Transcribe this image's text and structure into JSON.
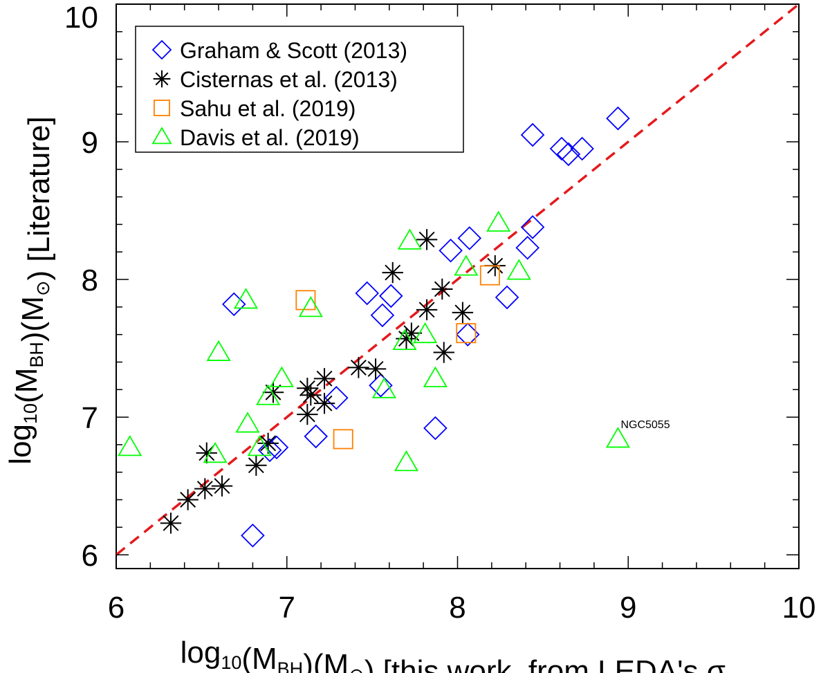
{
  "chart_data": {
    "type": "scatter",
    "xlim": [
      6,
      10
    ],
    "ylim": [
      5.9,
      10
    ],
    "xticks": [
      "6",
      "7",
      "8",
      "9",
      "10"
    ],
    "yticks": [
      "6",
      "7",
      "8",
      "9",
      "10"
    ],
    "xlabel": {
      "pre": "log",
      "sub1": "10",
      "mid1": "(M",
      "sub2": "BH",
      "mid2": ")(M",
      "sub3": "⊙",
      "post": ")  [this work, from LEDA's σ",
      "sub4": "*"
    },
    "ylabel": {
      "pre": "log",
      "sub1": "10",
      "mid1": "(M",
      "sub2": "BH",
      "mid2": ")(M",
      "sub3": "⊙",
      "post": ")  [Literature]"
    },
    "legend_position": "top-left",
    "fit_line": {
      "style": "dashed",
      "color": "#e41a1c",
      "x": [
        6,
        10
      ],
      "y": [
        6,
        10
      ]
    },
    "annotations": [
      {
        "text": "NGC5055",
        "x": 8.94,
        "y": 6.88
      }
    ],
    "series": [
      {
        "name": "Graham & Scott (2013)",
        "marker": "diamond",
        "color": "#0000ff",
        "points": [
          [
            8.44,
            9.05
          ],
          [
            8.61,
            8.95
          ],
          [
            8.65,
            8.91
          ],
          [
            8.73,
            8.95
          ],
          [
            8.94,
            9.17
          ],
          [
            8.44,
            8.38
          ],
          [
            8.41,
            8.23
          ],
          [
            8.07,
            8.3
          ],
          [
            7.96,
            8.21
          ],
          [
            8.29,
            7.87
          ],
          [
            7.47,
            7.9
          ],
          [
            7.61,
            7.88
          ],
          [
            7.56,
            7.74
          ],
          [
            8.06,
            7.6
          ],
          [
            6.69,
            7.82
          ],
          [
            7.55,
            7.23
          ],
          [
            7.29,
            7.14
          ],
          [
            7.17,
            6.86
          ],
          [
            6.94,
            6.78
          ],
          [
            6.9,
            6.76
          ],
          [
            7.87,
            6.92
          ],
          [
            6.8,
            6.14
          ]
        ]
      },
      {
        "name": "Cisternas et al. (2013)",
        "marker": "asterisk",
        "color": "#000000",
        "points": [
          [
            7.82,
            8.29
          ],
          [
            8.22,
            8.1
          ],
          [
            7.62,
            8.05
          ],
          [
            7.91,
            7.93
          ],
          [
            7.82,
            7.78
          ],
          [
            8.03,
            7.76
          ],
          [
            7.73,
            7.61
          ],
          [
            7.7,
            7.57
          ],
          [
            7.92,
            7.47
          ],
          [
            7.42,
            7.36
          ],
          [
            7.52,
            7.35
          ],
          [
            7.22,
            7.28
          ],
          [
            7.12,
            7.21
          ],
          [
            6.92,
            7.18
          ],
          [
            7.14,
            7.16
          ],
          [
            7.22,
            7.1
          ],
          [
            7.12,
            7.02
          ],
          [
            6.53,
            6.74
          ],
          [
            6.89,
            6.81
          ],
          [
            6.82,
            6.65
          ],
          [
            6.52,
            6.48
          ],
          [
            6.62,
            6.5
          ],
          [
            6.42,
            6.4
          ],
          [
            6.32,
            6.23
          ]
        ]
      },
      {
        "name": "Sahu et al. (2019)",
        "marker": "square",
        "color": "#ff8000",
        "points": [
          [
            7.11,
            7.85
          ],
          [
            8.19,
            8.03
          ],
          [
            8.05,
            7.61
          ],
          [
            7.33,
            6.84
          ]
        ]
      },
      {
        "name": "Davis et al. (2019)",
        "marker": "triangle",
        "color": "#00ff00",
        "points": [
          [
            8.24,
            8.41
          ],
          [
            7.72,
            8.28
          ],
          [
            8.36,
            8.06
          ],
          [
            8.05,
            8.09
          ],
          [
            6.76,
            7.85
          ],
          [
            7.14,
            7.79
          ],
          [
            7.81,
            7.6
          ],
          [
            7.69,
            7.55
          ],
          [
            6.6,
            7.47
          ],
          [
            6.97,
            7.28
          ],
          [
            7.87,
            7.28
          ],
          [
            7.57,
            7.2
          ],
          [
            6.89,
            7.15
          ],
          [
            6.77,
            6.95
          ],
          [
            6.84,
            6.78
          ],
          [
            6.58,
            6.73
          ],
          [
            6.08,
            6.78
          ],
          [
            7.7,
            6.67
          ],
          [
            8.94,
            6.84
          ]
        ]
      }
    ]
  }
}
